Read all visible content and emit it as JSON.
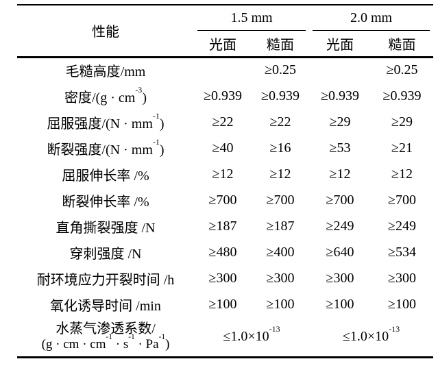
{
  "table": {
    "header": {
      "property": "性能",
      "groups": [
        "1.5 mm",
        "2.0 mm"
      ],
      "subheaders": [
        "光面",
        "糙面",
        "光面",
        "糙面"
      ]
    },
    "rows": [
      {
        "label": "毛糙高度/mm",
        "values": [
          "",
          "≥0.25",
          "",
          "≥0.25"
        ]
      },
      {
        "label": "密度/(g · cm⁻³)",
        "values": [
          "≥0.939",
          "≥0.939",
          "≥0.939",
          "≥0.939"
        ]
      },
      {
        "label": "屈服强度/(N · mm⁻¹)",
        "values": [
          "≥22",
          "≥22",
          "≥29",
          "≥29"
        ]
      },
      {
        "label": "断裂强度/(N · mm⁻¹)",
        "values": [
          "≥40",
          "≥16",
          "≥53",
          "≥21"
        ]
      },
      {
        "label": "屈服伸长率 /%",
        "values": [
          "≥12",
          "≥12",
          "≥12",
          "≥12"
        ]
      },
      {
        "label": "断裂伸长率 /%",
        "values": [
          "≥700",
          "≥700",
          "≥700",
          "≥700"
        ]
      },
      {
        "label": "直角撕裂强度 /N",
        "values": [
          "≥187",
          "≥187",
          "≥249",
          "≥249"
        ]
      },
      {
        "label": "穿刺强度 /N",
        "values": [
          "≥480",
          "≥400",
          "≥640",
          "≥534"
        ]
      },
      {
        "label": "耐环境应力开裂时间 /h",
        "values": [
          "≥300",
          "≥300",
          "≥300",
          "≥300"
        ]
      },
      {
        "label": "氧化诱导时间 /min",
        "values": [
          "≥100",
          "≥100",
          "≥100",
          "≥100"
        ]
      }
    ],
    "last_row": {
      "label_line1": "水蒸气渗透系数/",
      "label_line2": "(g · cm · cm⁻¹ · s⁻¹ · Pa⁻¹)",
      "values": [
        "≤1.0×10⁻¹³",
        "≤1.0×10⁻¹³"
      ]
    }
  }
}
